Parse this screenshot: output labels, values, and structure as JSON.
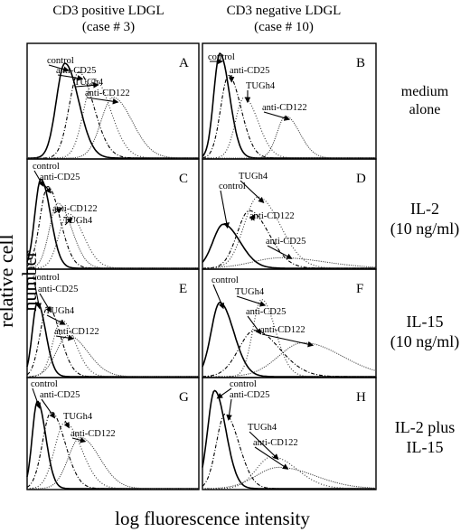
{
  "headers": {
    "col1": [
      "CD3 positive LDGL",
      "(case # 3)"
    ],
    "col2": [
      "CD3 negative LDGL",
      "(case # 10)"
    ]
  },
  "row_labels": [
    [
      "medium",
      "alone"
    ],
    [
      "IL-2",
      "(10 ng/ml)"
    ],
    [
      "IL-15",
      "(10 ng/ml)"
    ],
    [
      "IL-2 plus",
      "IL-15"
    ]
  ],
  "axis": {
    "ylabel": "relative cell number",
    "xlabel": "log fluorescence intensity"
  },
  "chart_data": [
    {
      "type": "line",
      "panel": "A",
      "series": [
        {
          "name": "control",
          "peak": 0.22,
          "width": 0.05,
          "height": 0.86,
          "style": "solid"
        },
        {
          "name": "anti-CD25",
          "peak": 0.3,
          "width": 0.055,
          "height": 0.78,
          "style": "dashdot"
        },
        {
          "name": "TUGh4",
          "peak": 0.39,
          "width": 0.06,
          "height": 0.72,
          "style": "dotted"
        },
        {
          "name": "anti-CD122",
          "peak": 0.5,
          "width": 0.07,
          "height": 0.55,
          "style": "dense"
        }
      ]
    },
    {
      "type": "line",
      "panel": "B",
      "series": [
        {
          "name": "control",
          "peak": 0.1,
          "width": 0.035,
          "height": 0.95,
          "style": "solid"
        },
        {
          "name": "anti-CD25",
          "peak": 0.15,
          "width": 0.045,
          "height": 0.75,
          "style": "dashdot"
        },
        {
          "name": "TUGh4",
          "peak": 0.24,
          "width": 0.05,
          "height": 0.55,
          "style": "dotted"
        },
        {
          "name": "anti-CD122",
          "peak": 0.48,
          "width": 0.05,
          "height": 0.38,
          "style": "dense"
        }
      ]
    },
    {
      "type": "line",
      "panel": "C",
      "series": [
        {
          "name": "control",
          "peak": 0.08,
          "width": 0.035,
          "height": 0.85,
          "style": "solid"
        },
        {
          "name": "anti-CD25",
          "peak": 0.12,
          "width": 0.045,
          "height": 0.78,
          "style": "dashdot"
        },
        {
          "name": "anti-CD122",
          "peak": 0.18,
          "width": 0.05,
          "height": 0.62,
          "style": "dense"
        },
        {
          "name": "TUGh4",
          "peak": 0.24,
          "width": 0.055,
          "height": 0.52,
          "style": "dotted"
        }
      ]
    },
    {
      "type": "line",
      "panel": "D",
      "series": [
        {
          "name": "control",
          "peak": 0.12,
          "width": 0.06,
          "height": 0.42,
          "style": "solid"
        },
        {
          "name": "TUGh4",
          "peak": 0.32,
          "width": 0.08,
          "height": 0.68,
          "style": "dotted"
        },
        {
          "name": "anti-CD122",
          "peak": 0.27,
          "width": 0.07,
          "height": 0.55,
          "style": "dashdot"
        },
        {
          "name": "anti-CD25",
          "peak": 0.45,
          "width": 0.16,
          "height": 0.1,
          "style": "dense"
        }
      ]
    },
    {
      "type": "line",
      "panel": "E",
      "series": [
        {
          "name": "control",
          "peak": 0.06,
          "width": 0.03,
          "height": 0.72,
          "style": "solid"
        },
        {
          "name": "anti-CD25",
          "peak": 0.12,
          "width": 0.045,
          "height": 0.68,
          "style": "dashdot"
        },
        {
          "name": "TUGh4",
          "peak": 0.2,
          "width": 0.05,
          "height": 0.55,
          "style": "dotted"
        },
        {
          "name": "anti-CD122",
          "peak": 0.24,
          "width": 0.07,
          "height": 0.4,
          "style": "dense"
        }
      ]
    },
    {
      "type": "line",
      "panel": "F",
      "series": [
        {
          "name": "control",
          "peak": 0.1,
          "width": 0.05,
          "height": 0.72,
          "style": "solid"
        },
        {
          "name": "TUGh4",
          "peak": 0.34,
          "width": 0.05,
          "height": 0.75,
          "style": "dotted"
        },
        {
          "name": "anti-CD25",
          "peak": 0.3,
          "width": 0.09,
          "height": 0.45,
          "style": "dashdot"
        },
        {
          "name": "anti-CD122",
          "peak": 0.58,
          "width": 0.14,
          "height": 0.33,
          "style": "dense"
        }
      ]
    },
    {
      "type": "line",
      "panel": "G",
      "series": [
        {
          "name": "control",
          "peak": 0.06,
          "width": 0.03,
          "height": 0.82,
          "style": "solid"
        },
        {
          "name": "anti-CD25",
          "peak": 0.14,
          "width": 0.05,
          "height": 0.72,
          "style": "dashdot"
        },
        {
          "name": "TUGh4",
          "peak": 0.22,
          "width": 0.06,
          "height": 0.62,
          "style": "dotted"
        },
        {
          "name": "anti-CD122",
          "peak": 0.31,
          "width": 0.07,
          "height": 0.48,
          "style": "dense"
        }
      ]
    },
    {
      "type": "line",
      "panel": "H",
      "series": [
        {
          "name": "control",
          "peak": 0.07,
          "width": 0.04,
          "height": 0.92,
          "style": "solid"
        },
        {
          "name": "anti-CD25",
          "peak": 0.13,
          "width": 0.05,
          "height": 0.7,
          "style": "dashdot"
        },
        {
          "name": "TUGh4",
          "peak": 0.4,
          "width": 0.09,
          "height": 0.3,
          "style": "dotted"
        },
        {
          "name": "anti-CD122",
          "peak": 0.44,
          "width": 0.13,
          "height": 0.2,
          "style": "dense"
        }
      ]
    }
  ]
}
